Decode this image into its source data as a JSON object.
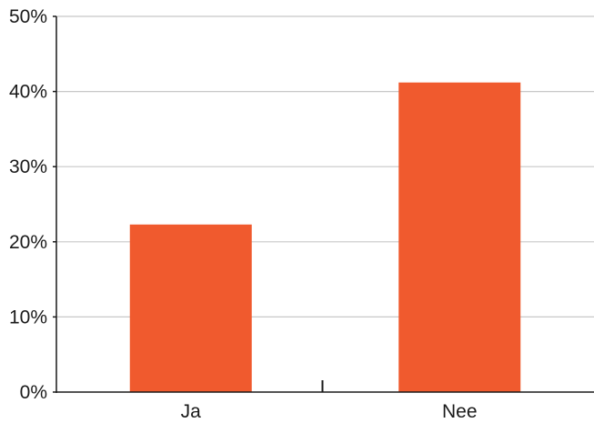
{
  "chart_data": {
    "type": "bar",
    "categories": [
      "Ja",
      "Nee"
    ],
    "values": [
      22.3,
      41.2
    ],
    "ylim": [
      0,
      50
    ],
    "yticks": [
      0,
      10,
      20,
      30,
      40,
      50
    ],
    "ytick_labels": [
      "0%",
      "10%",
      "20%",
      "30%",
      "40%",
      "50%"
    ],
    "grid": true,
    "bar_color": "#f05a2e",
    "grid_color": "#c8c8c8",
    "axis_color": "#1a1a1a"
  }
}
